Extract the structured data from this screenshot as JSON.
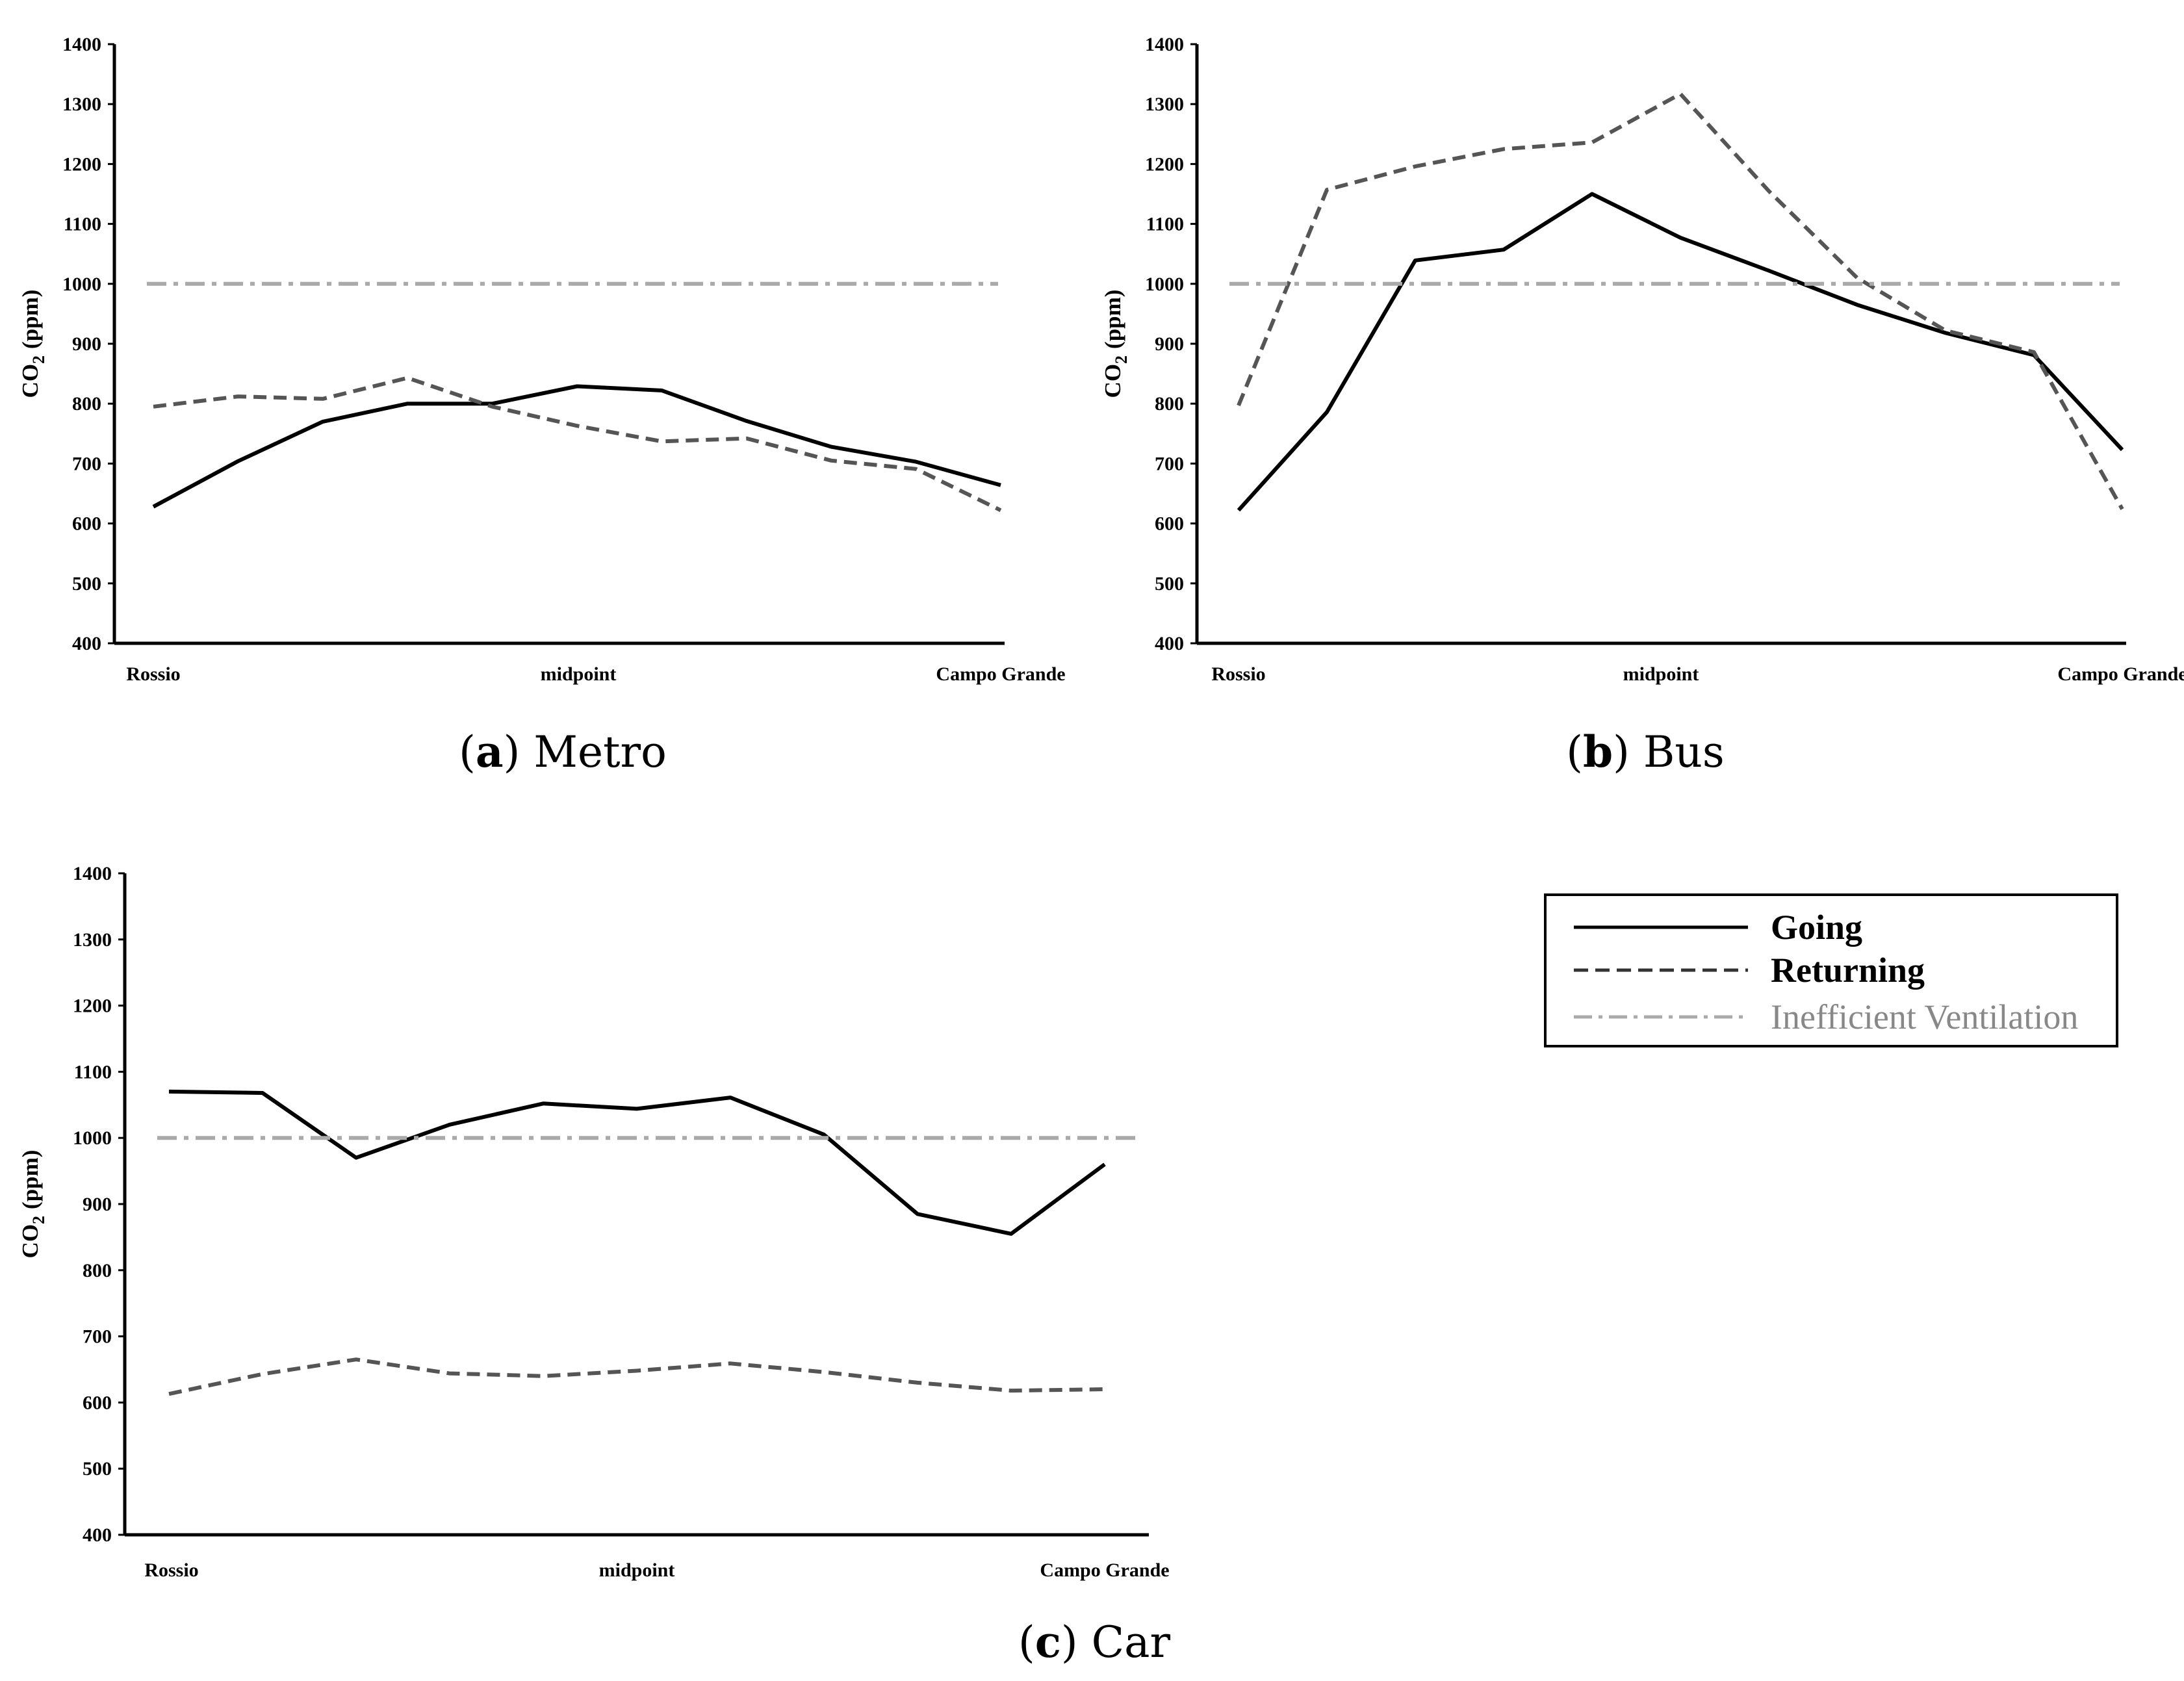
{
  "chart_data": [
    {
      "type": "line",
      "panel": "a",
      "caption_letter": "a",
      "caption_text": "Metro",
      "ylabel": "CO2 (ppm)",
      "ylabel_main": "CO",
      "ylabel_sub": "2",
      "ylabel_rest": "(ppm)",
      "ylim": [
        400,
        1400
      ],
      "yticks": [
        "400",
        "500",
        "600",
        "700",
        "800",
        "900",
        "1000",
        "1100",
        "1200",
        "1300",
        "1400"
      ],
      "x_labels": [
        "Rossio",
        "midpoint",
        "Campo Grande"
      ],
      "series": [
        {
          "name": "Going",
          "values": [
            628,
            704,
            770,
            800,
            800,
            829,
            822,
            771,
            728,
            703,
            664
          ]
        },
        {
          "name": "Returning",
          "values": [
            795,
            812,
            808,
            843,
            795,
            763,
            737,
            742,
            705,
            691,
            622
          ]
        },
        {
          "name": "Inefficient Ventilation",
          "values": [
            1000,
            1000
          ]
        }
      ]
    },
    {
      "type": "line",
      "panel": "b",
      "caption_letter": "b",
      "caption_text": "Bus",
      "ylabel": "CO2 (ppm)",
      "ylabel_main": "CO",
      "ylabel_sub": "2",
      "ylabel_rest": "(ppm)",
      "ylim": [
        400,
        1400
      ],
      "yticks": [
        "400",
        "500",
        "600",
        "700",
        "800",
        "900",
        "1000",
        "1100",
        "1200",
        "1300",
        "1400"
      ],
      "x_labels": [
        "Rossio",
        "midpoint",
        "Campo Grande"
      ],
      "series": [
        {
          "name": "Going",
          "values": [
            622,
            786,
            1039,
            1057,
            1150,
            1077,
            1022,
            965,
            918,
            881,
            723
          ]
        },
        {
          "name": "Returning",
          "values": [
            797,
            1157,
            1196,
            1225,
            1236,
            1317,
            1155,
            1010,
            922,
            886,
            624
          ]
        },
        {
          "name": "Inefficient Ventilation",
          "values": [
            1000,
            1000
          ]
        }
      ]
    },
    {
      "type": "line",
      "panel": "c",
      "caption_letter": "c",
      "caption_text": "Car",
      "ylabel": "CO2 (ppm)",
      "ylabel_main": "CO",
      "ylabel_sub": "2",
      "ylabel_rest": "(ppm)",
      "ylim": [
        400,
        1400
      ],
      "yticks": [
        "400",
        "500",
        "600",
        "700",
        "800",
        "900",
        "1000",
        "1100",
        "1200",
        "1300",
        "1400"
      ],
      "x_labels": [
        "Rossio",
        "midpoint",
        "Campo Grande"
      ],
      "series": [
        {
          "name": "Going",
          "values": [
            1070,
            1068,
            970,
            1020,
            1052,
            1044,
            1061,
            1005,
            885,
            855,
            960
          ]
        },
        {
          "name": "Returning",
          "values": [
            613,
            643,
            665,
            644,
            640,
            648,
            659,
            646,
            630,
            618,
            620
          ]
        },
        {
          "name": "Inefficient Ventilation",
          "values": [
            1000,
            1000
          ]
        }
      ]
    }
  ],
  "legend": {
    "items": [
      "Going",
      "Returning",
      "Inefficient Ventilation"
    ],
    "colors": {
      "Going": "#000000",
      "Returning": "#555555",
      "Inefficient Ventilation": "#aaaaaa"
    }
  }
}
